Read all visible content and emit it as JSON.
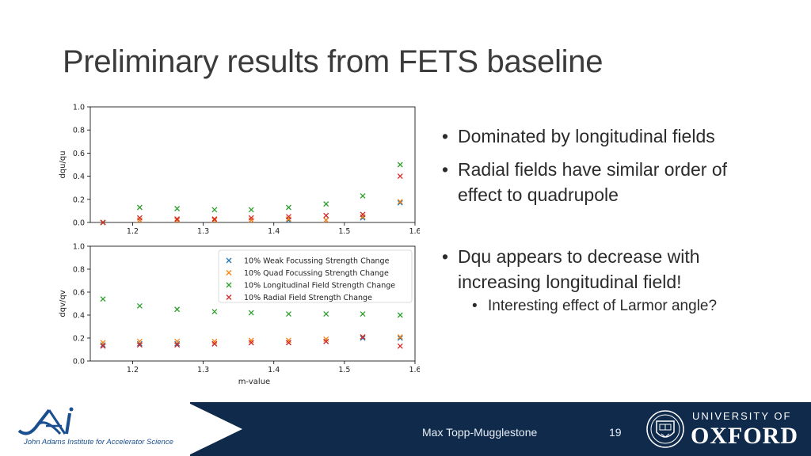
{
  "slide": {
    "title": "Preliminary results from FETS baseline",
    "presenter": "Max Topp-Mugglestone",
    "slide_number": "19"
  },
  "bullets": {
    "b1": "Dominated by longitudinal fields",
    "b2": "Radial fields have similar order of effect to quadrupole",
    "b3": "Dqu appears to decrease with increasing longitudinal field!",
    "b3_sub": "Interesting effect of Larmor angle?"
  },
  "footer": {
    "institute": "John Adams Institute for Accelerator Science",
    "jai_logo": "JAI",
    "university_line1": "UNIVERSITY OF",
    "university_line2": "OXFORD",
    "crest_icon": "oxford-crest-icon"
  },
  "colors": {
    "weak": "#1f77b4",
    "quad": "#ff7f0e",
    "long": "#2ca02c",
    "radial": "#d62728",
    "footer_bg": "#0f2a4a"
  },
  "chart_data": [
    {
      "type": "scatter",
      "panel": "top",
      "xlabel": "",
      "ylabel": "dqu/qu",
      "xlim": [
        1.14,
        1.6
      ],
      "ylim": [
        0,
        1.0
      ],
      "xticks": [
        "1.2",
        "1.3",
        "1.4",
        "1.5",
        "1.6"
      ],
      "yticks": [
        "0.0",
        "0.2",
        "0.4",
        "0.6",
        "0.8",
        "1.0"
      ],
      "marker": "x",
      "x": [
        1.158,
        1.21,
        1.263,
        1.316,
        1.368,
        1.421,
        1.474,
        1.526,
        1.579
      ],
      "series": [
        {
          "name": "10% Weak Focussing Strength Change",
          "values": [
            0.0,
            0.02,
            0.02,
            0.02,
            0.02,
            0.02,
            0.02,
            0.04,
            0.17
          ]
        },
        {
          "name": "10% Quad Focussing Strength Change",
          "values": [
            0.0,
            0.02,
            0.02,
            0.02,
            0.02,
            0.03,
            0.02,
            0.05,
            0.18
          ]
        },
        {
          "name": "10% Longitudinal Field Strength Change",
          "values": [
            0.0,
            0.13,
            0.12,
            0.11,
            0.11,
            0.13,
            0.16,
            0.23,
            0.5
          ]
        },
        {
          "name": "10% Radial Field Strength Change",
          "values": [
            0.0,
            0.04,
            0.03,
            0.03,
            0.04,
            0.05,
            0.06,
            0.07,
            0.4
          ]
        }
      ]
    },
    {
      "type": "scatter",
      "panel": "bottom",
      "xlabel": "m-value",
      "ylabel": "dqv/qv",
      "xlim": [
        1.14,
        1.6
      ],
      "ylim": [
        0,
        1.0
      ],
      "xticks": [
        "1.2",
        "1.3",
        "1.4",
        "1.5",
        "1.6"
      ],
      "yticks": [
        "0.0",
        "0.2",
        "0.4",
        "0.6",
        "0.8",
        "1.0"
      ],
      "marker": "x",
      "legend_position": "top-right",
      "x": [
        1.158,
        1.21,
        1.263,
        1.316,
        1.368,
        1.421,
        1.474,
        1.526,
        1.579
      ],
      "series": [
        {
          "name": "10% Weak Focussing Strength Change",
          "values": [
            0.14,
            0.15,
            0.15,
            0.15,
            0.16,
            0.16,
            0.17,
            0.2,
            0.2
          ]
        },
        {
          "name": "10% Quad Focussing Strength Change",
          "values": [
            0.16,
            0.17,
            0.17,
            0.17,
            0.18,
            0.18,
            0.19,
            0.21,
            0.21
          ]
        },
        {
          "name": "10% Longitudinal Field Strength Change",
          "values": [
            0.54,
            0.48,
            0.45,
            0.43,
            0.42,
            0.41,
            0.41,
            0.41,
            0.4
          ]
        },
        {
          "name": "10% Radial Field Strength Change",
          "values": [
            0.13,
            0.14,
            0.14,
            0.15,
            0.16,
            0.16,
            0.17,
            0.21,
            0.13
          ]
        }
      ]
    }
  ]
}
